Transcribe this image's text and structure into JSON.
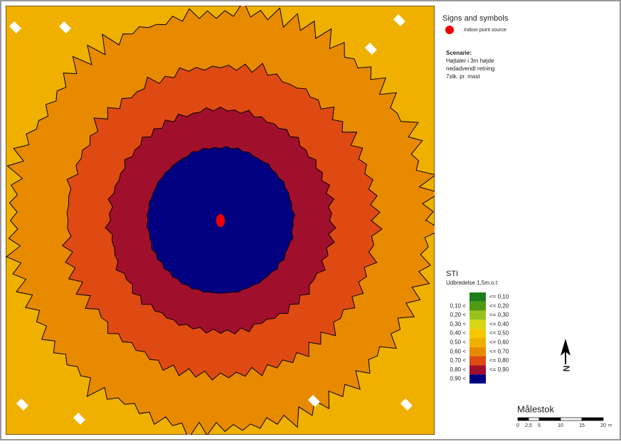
{
  "legend": {
    "title": "Signs and symbols",
    "source_label": "Indoor point source"
  },
  "scenario": {
    "heading": "Scenarie:",
    "lines": [
      "Højtaler i 3m højde",
      "nedadvendt retning",
      "7stk. pr. mast"
    ]
  },
  "sti": {
    "title": "STI",
    "subtitle": "Udbredelse 1,5m.o.t",
    "rows": [
      {
        "to": "<=  0,10",
        "color": "#1a7f1a"
      },
      {
        "from": "0,10 <",
        "to": "<=  0,20",
        "color": "#4f9a12"
      },
      {
        "from": "0,20 <",
        "to": "<=  0,30",
        "color": "#98c21a"
      },
      {
        "from": "0,30 <",
        "to": "<=  0,40",
        "color": "#d6d614"
      },
      {
        "from": "0,40 <",
        "to": "<=  0,50",
        "color": "#f5c800"
      },
      {
        "from": "0,50 <",
        "to": "<=  0,60",
        "color": "#f0b000"
      },
      {
        "from": "0,60 <",
        "to": "<=  0,70",
        "color": "#e88a00"
      },
      {
        "from": "0,70 <",
        "to": "<=  0,80",
        "color": "#de4a12"
      },
      {
        "from": "0,80 <",
        "to": "<=  0,90",
        "color": "#a0102c"
      },
      {
        "from": "0,90 <",
        "color": "#000080"
      }
    ]
  },
  "scale": {
    "title": "Målestok",
    "ticks": [
      "0",
      "2,5",
      "5",
      "10",
      "15",
      "20"
    ],
    "unit": "m"
  },
  "north": "N"
}
